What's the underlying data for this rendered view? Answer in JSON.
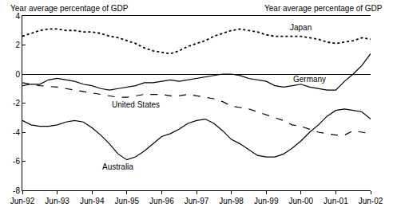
{
  "chart_data": {
    "type": "line",
    "ylabel": "Year average percentage of GDP",
    "y2label": "Year average percentage of GDP",
    "categories": [
      "Jun-92",
      null,
      null,
      null,
      "Jun-93",
      null,
      null,
      null,
      "Jun-94",
      null,
      null,
      null,
      "Jun-95",
      null,
      null,
      null,
      "Jun-96",
      null,
      null,
      null,
      "Jun-97",
      null,
      null,
      null,
      "Jun-98",
      null,
      null,
      null,
      "Jun-99",
      null,
      null,
      null,
      "Jun-00",
      null,
      null,
      null,
      "Jun-01",
      null,
      null,
      null,
      "Jun-02"
    ],
    "series": [
      {
        "name": "Japan",
        "color": "#000000",
        "line_style": "dotted",
        "values": [
          2.6,
          2.8,
          3.0,
          3.1,
          3.1,
          3.0,
          3.0,
          2.9,
          2.9,
          2.8,
          2.6,
          2.5,
          2.3,
          2.1,
          1.8,
          1.6,
          1.5,
          1.4,
          1.6,
          1.9,
          2.1,
          2.3,
          2.6,
          2.8,
          3.0,
          3.1,
          3.0,
          2.9,
          2.7,
          2.6,
          2.6,
          2.6,
          2.6,
          2.5,
          2.4,
          2.2,
          2.1,
          2.2,
          2.3,
          2.5,
          2.4
        ]
      },
      {
        "name": "United States",
        "color": "#000000",
        "line_style": "dashed",
        "values": [
          -0.6,
          -0.7,
          -0.8,
          -0.85,
          -0.9,
          -1.0,
          -1.1,
          -1.2,
          -1.3,
          -1.4,
          -1.5,
          -1.6,
          -1.6,
          -1.5,
          -1.4,
          -1.4,
          -1.4,
          -1.5,
          -1.5,
          -1.4,
          -1.5,
          -1.6,
          -1.7,
          -1.9,
          -2.2,
          -2.3,
          -2.4,
          -2.6,
          -2.8,
          -3.0,
          -3.2,
          -3.5,
          -3.6,
          -3.8,
          -4.0,
          -4.1,
          -4.2,
          -4.2,
          -3.9,
          -4.0,
          -4.1
        ]
      },
      {
        "name": "Germany",
        "color": "#000000",
        "line_style": "solid",
        "values": [
          -0.8,
          -0.7,
          -0.7,
          -0.4,
          -0.3,
          -0.4,
          -0.5,
          -0.7,
          -0.8,
          -1.0,
          -1.1,
          -1.0,
          -0.9,
          -0.8,
          -0.6,
          -0.6,
          -0.5,
          -0.4,
          -0.5,
          -0.4,
          -0.3,
          -0.2,
          -0.1,
          0.0,
          0.0,
          -0.1,
          -0.3,
          -0.4,
          -0.5,
          -0.8,
          -0.9,
          -0.8,
          -0.7,
          -0.9,
          -1.0,
          -1.1,
          -1.1,
          -0.5,
          0.0,
          0.6,
          1.4
        ]
      },
      {
        "name": "Australia",
        "color": "#000000",
        "line_style": "solid",
        "values": [
          -3.2,
          -3.5,
          -3.6,
          -3.6,
          -3.5,
          -3.3,
          -3.2,
          -3.3,
          -3.7,
          -4.2,
          -4.8,
          -5.5,
          -5.9,
          -5.7,
          -5.3,
          -4.8,
          -4.3,
          -4.1,
          -3.8,
          -3.4,
          -3.2,
          -3.1,
          -3.4,
          -3.9,
          -4.5,
          -4.8,
          -5.2,
          -5.6,
          -5.7,
          -5.7,
          -5.5,
          -5.1,
          -4.6,
          -4.0,
          -3.5,
          -2.9,
          -2.5,
          -2.4,
          -2.5,
          -2.6,
          -3.1
        ]
      }
    ],
    "ylim": [
      -8,
      4
    ],
    "yticks": [
      -8,
      -6,
      -4,
      -2,
      0,
      2,
      4
    ],
    "y2lim": [
      -8,
      4
    ],
    "y2ticks": [
      -8,
      -6,
      -4,
      -2,
      0,
      2,
      4
    ],
    "grid": false,
    "legend": "none"
  }
}
